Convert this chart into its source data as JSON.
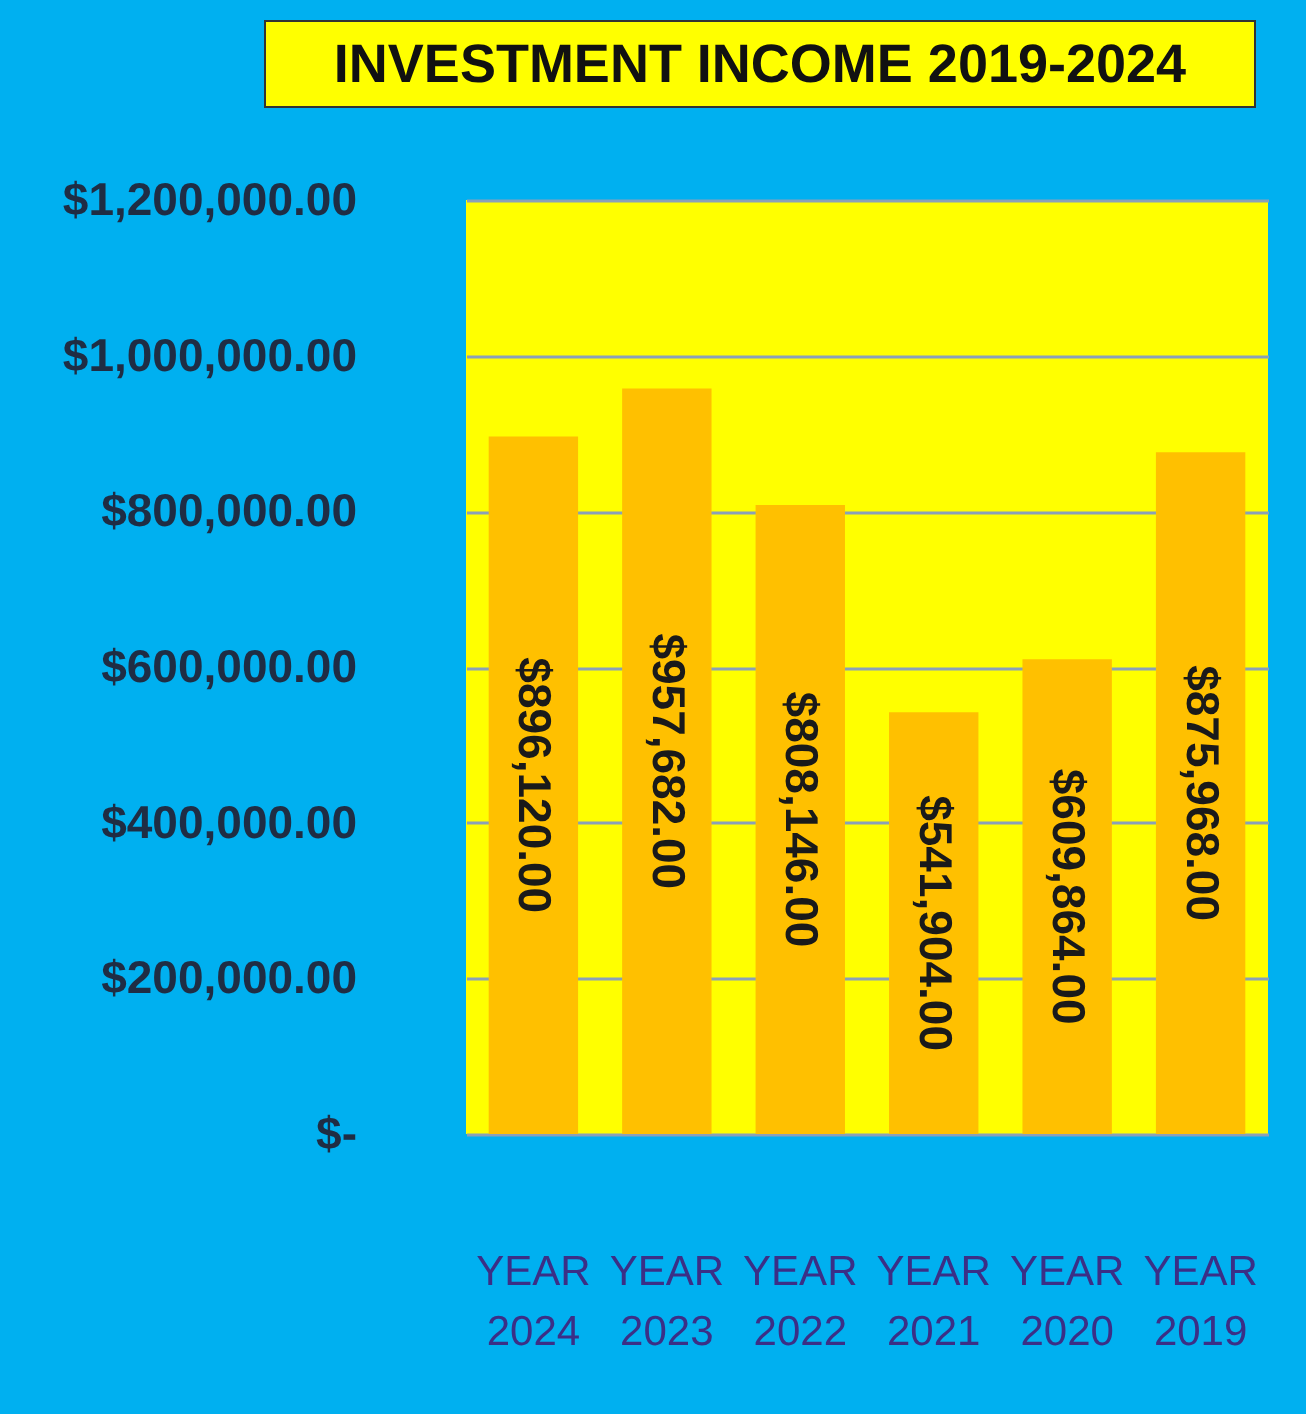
{
  "chart_data": {
    "type": "bar",
    "title": "INVESTMENT INCOME 2019-2024",
    "categories": [
      "YEAR 2024",
      "YEAR 2023",
      "YEAR 2022",
      "YEAR 2021",
      "YEAR 2020",
      "YEAR 2019"
    ],
    "values": [
      896120,
      957682,
      808146,
      541904,
      609864,
      875968
    ],
    "color": "#ffc000",
    "ylim": [
      0,
      1200000
    ],
    "yticks": [
      {
        "value": 0,
        "label": "$-"
      },
      {
        "value": 200000,
        "label": "$200,000.00"
      },
      {
        "value": 400000,
        "label": "$400,000.00"
      },
      {
        "value": 600000,
        "label": "$600,000.00"
      },
      {
        "value": 800000,
        "label": "$800,000.00"
      },
      {
        "value": 1000000,
        "label": "$1,000,000.00"
      },
      {
        "value": 1200000,
        "label": "$1,200,000.00"
      }
    ],
    "value_labels": [
      "$896,120.00",
      "$957,682.00",
      "$808,146.00",
      "$541,904.00",
      "$609,864.00",
      "$875,968.00"
    ],
    "grid": true
  }
}
